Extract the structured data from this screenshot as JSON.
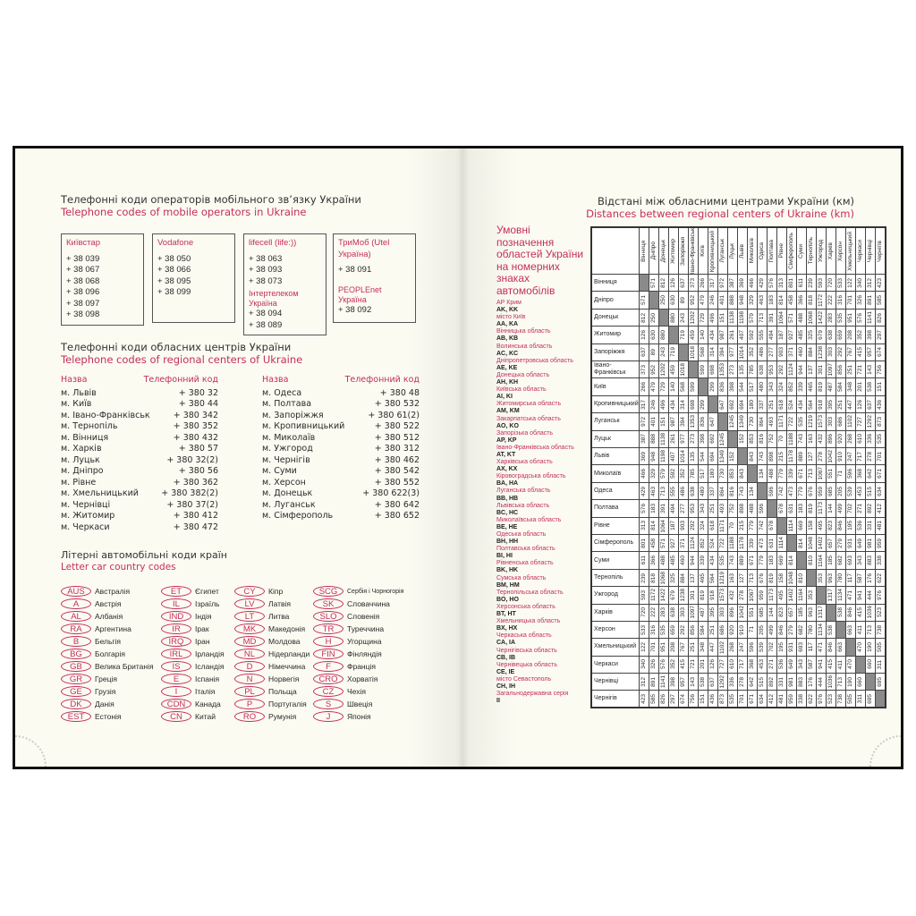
{
  "mobile": {
    "title": "Телефонні коди операторів мобільного зв’язку України",
    "subtitle": "Telephone codes of mobile operators in Ukraine",
    "operators": [
      {
        "name": "Київстар",
        "codes": [
          "+ 38 039",
          "+ 38 067",
          "+ 38 068",
          "+ 38 096",
          "+ 38 097",
          "+ 38 098"
        ]
      },
      {
        "name": "Vodafone",
        "codes": [
          "+ 38 050",
          "+ 38 066",
          "+ 38 095",
          "+ 38 099"
        ]
      },
      {
        "name": "lifecell (life:))",
        "codes": [
          "+ 38 063",
          "+ 38 093",
          "+ 38 073"
        ],
        "sub": "Інтертелеком Україна",
        "subcodes": [
          "+ 38 094",
          "+ 38 089"
        ]
      },
      {
        "name": "ТриМоб (Utel Україна)",
        "codes": [
          "+ 38 091"
        ],
        "sub": "PEOPLEnet Україна",
        "subcodes": [
          "+ 38 092"
        ]
      }
    ]
  },
  "regional": {
    "title": "Телефонні коди обласних центрів України",
    "subtitle": "Telephone codes of regional centers of Ukraine",
    "col_name": "Назва",
    "col_code": "Телефонний код",
    "left": [
      [
        "м. Львів",
        "+ 380 32"
      ],
      [
        "м. Київ",
        "+ 380 44"
      ],
      [
        "м. Івано-Франківськ",
        "+ 380 342"
      ],
      [
        "м. Тернопіль",
        "+ 380 352"
      ],
      [
        "м. Вінниця",
        "+ 380 432"
      ],
      [
        "м. Харків",
        "+ 380 57"
      ],
      [
        "м. Луцьк",
        "+ 380 32(2)"
      ],
      [
        "м. Дніпро",
        "+ 380 56"
      ],
      [
        "м. Рівне",
        "+ 380 362"
      ],
      [
        "м. Хмельницький",
        "+ 380 382(2)"
      ],
      [
        "м. Чернівці",
        "+ 380 37(2)"
      ],
      [
        "м. Житомир",
        "+ 380 412"
      ],
      [
        "м. Черкаси",
        "+ 380 472"
      ]
    ],
    "right": [
      [
        "м. Одеса",
        "+ 380 48"
      ],
      [
        "м. Полтава",
        "+ 380 532"
      ],
      [
        "м. Запоріжжя",
        "+ 380 61(2)"
      ],
      [
        "м. Кропивницький",
        "+ 380 522"
      ],
      [
        "м. Миколаїв",
        "+ 380 512"
      ],
      [
        "м. Ужгород",
        "+ 380 312"
      ],
      [
        "м. Чернігів",
        "+ 380 462"
      ],
      [
        "м. Суми",
        "+ 380 542"
      ],
      [
        "м. Херсон",
        "+ 380 552"
      ],
      [
        "м. Донецьк",
        "+ 380 622(3)"
      ],
      [
        "м. Луганськ",
        "+ 380 642"
      ],
      [
        "м. Сімферополь",
        "+ 380 652"
      ]
    ]
  },
  "countries": {
    "title": "Літерні автомобільні коди країн",
    "subtitle": "Letter car country codes",
    "columns": [
      [
        [
          "AUS",
          "Австралія"
        ],
        [
          "A",
          "Австрія"
        ],
        [
          "AL",
          "Албанія"
        ],
        [
          "RA",
          "Аргентина"
        ],
        [
          "B",
          "Бельгія"
        ],
        [
          "BG",
          "Болгарія"
        ],
        [
          "GB",
          "Велика Британія"
        ],
        [
          "GR",
          "Греція"
        ],
        [
          "GE",
          "Грузія"
        ],
        [
          "DK",
          "Данія"
        ],
        [
          "EST",
          "Естонія"
        ]
      ],
      [
        [
          "ET",
          "Єгипет"
        ],
        [
          "IL",
          "Ізраїль"
        ],
        [
          "IND",
          "Індія"
        ],
        [
          "IR",
          "Ірак"
        ],
        [
          "IRQ",
          "Іран"
        ],
        [
          "IRL",
          "Ірландія"
        ],
        [
          "IS",
          "Ісландія"
        ],
        [
          "E",
          "Іспанія"
        ],
        [
          "I",
          "Італія"
        ],
        [
          "CDN",
          "Канада"
        ],
        [
          "CN",
          "Китай"
        ]
      ],
      [
        [
          "CY",
          "Кіпр"
        ],
        [
          "LV",
          "Латвія"
        ],
        [
          "LT",
          "Литва"
        ],
        [
          "MK",
          "Македонія"
        ],
        [
          "MD",
          "Молдова"
        ],
        [
          "NL",
          "Нідерланди"
        ],
        [
          "D",
          "Німеччина"
        ],
        [
          "N",
          "Норвегія"
        ],
        [
          "PL",
          "Польща"
        ],
        [
          "P",
          "Португалія"
        ],
        [
          "RO",
          "Румунія"
        ]
      ],
      [
        [
          "SCG",
          "Сербія і Чорногорія"
        ],
        [
          "SK",
          "Словаччина"
        ],
        [
          "SLO",
          "Словенія"
        ],
        [
          "TR",
          "Туреччина"
        ],
        [
          "H",
          "Угорщина"
        ],
        [
          "FIN",
          "Фінляндія"
        ],
        [
          "F",
          "Франція"
        ],
        [
          "CRO",
          "Хорватія"
        ],
        [
          "CZ",
          "Чехія"
        ],
        [
          "S",
          "Швеція"
        ],
        [
          "J",
          "Японія"
        ]
      ]
    ]
  },
  "plates": {
    "title": "Умовні позначення областей України на номерних знаках автомобілів",
    "items": [
      [
        "АР Крим",
        "AK, KK"
      ],
      [
        "місто Київ",
        "AA, KA"
      ],
      [
        "Вінницька область",
        "AB, KB"
      ],
      [
        "Волинська область",
        "AC, KC"
      ],
      [
        "Дніпропетровська область",
        "AE, KE"
      ],
      [
        "Донецька область",
        "AH, KH"
      ],
      [
        "Київська область",
        "AI, KI"
      ],
      [
        "Житомирська область",
        "AM, KM"
      ],
      [
        "Закарпатська область",
        "AO, KO"
      ],
      [
        "Запорізька область",
        "AP, KP"
      ],
      [
        "Івано-Франківська область",
        "AT, KT"
      ],
      [
        "Харківська область",
        "AX, KX"
      ],
      [
        "Кіровоградська область",
        "BA, HA"
      ],
      [
        "Луганська область",
        "BB, HB"
      ],
      [
        "Львівська область",
        "BC, HC"
      ],
      [
        "Миколаївська область",
        "BE, HE"
      ],
      [
        "Одеська область",
        "BH, HH"
      ],
      [
        "Полтавська область",
        "BI, HI"
      ],
      [
        "Рівненська область",
        "BK, HK"
      ],
      [
        "Сумська область",
        "BM, HM"
      ],
      [
        "Тернопільська область",
        "BO, HO"
      ],
      [
        "Херсонська область",
        "BT, HT"
      ],
      [
        "Хмельницька область",
        "BX, HX"
      ],
      [
        "Черкаська область",
        "CA, IA"
      ],
      [
        "Чернігівська область",
        "CB, IB"
      ],
      [
        "Чернівецька область",
        "CE, IE"
      ],
      [
        "місто Севастополь",
        "CH, IH"
      ],
      [
        "Загальнодержавна серія",
        "II"
      ]
    ]
  },
  "distances": {
    "title": "Відстані між обласними центрами України (км)",
    "subtitle": "Distances between regional centers of Ukraine (km)",
    "cities": [
      "Вінниця",
      "Дніпро",
      "Донецьк",
      "Житомир",
      "Запоріжжя",
      "Івано-Франківськ",
      "Київ",
      "Кропивницький",
      "Луганськ",
      "Луцьк",
      "Львів",
      "Миколаїв",
      "Одеса",
      "Полтава",
      "Рівне",
      "Сімферополь",
      "Суми",
      "Тернопіль",
      "Ужгород",
      "Харків",
      "Херсон",
      "Хмельницький",
      "Черкаси",
      "Чернівці",
      "Чернігів"
    ],
    "header_labels": [
      "Вінниця",
      "Дніпро",
      "Донецьк",
      "Житомир",
      "Запоріжжя",
      "Івано-Франківськ",
      "Київ",
      "Кропивницький",
      "Луганськ",
      "Луцьк",
      "Львів",
      "Миколаїв",
      "Одеса",
      "Полтава",
      "Рівне",
      "Сімферополь",
      "Суми",
      "Тернопіль",
      "Ужгород",
      "Харків",
      "Херсон",
      "Хмельницький",
      "Черкаси",
      "Чернівці",
      "Чернігів"
    ],
    "row_labels": [
      "Вінниця",
      "Дніпро",
      "Донецьк",
      "Житомир",
      "Запоріжжя",
      "Івано-Франківськ",
      "Київ",
      "Кропивницький",
      "Луганськ",
      "Луцьк",
      "Львів",
      "Миколаїв",
      "Одеса",
      "Полтава",
      "Рівне",
      "Сімферополь",
      "Суми",
      "Тернопіль",
      "Ужгород",
      "Харків",
      "Херсон",
      "Хмельницький",
      "Черкаси",
      "Чернівці",
      "Чернігів"
    ],
    "matrix": [
      [
        null,
        571,
        812,
        126,
        637,
        373,
        266,
        317,
        972,
        387,
        369,
        466,
        429,
        576,
        313,
        801,
        611,
        239,
        593,
        720,
        533,
        122,
        340,
        312,
        423
      ],
      [
        571,
        null,
        250,
        630,
        89,
        952,
        479,
        246,
        401,
        888,
        948,
        329,
        463,
        183,
        814,
        458,
        366,
        818,
        1172,
        222,
        316,
        701,
        326,
        891,
        585
      ],
      [
        812,
        250,
        null,
        880,
        243,
        1202,
        729,
        496,
        151,
        1138,
        1198,
        579,
        713,
        391,
        1064,
        571,
        488,
        1068,
        1422,
        283,
        535,
        951,
        576,
        1141,
        826
      ],
      [
        126,
        630,
        880,
        null,
        719,
        459,
        140,
        434,
        987,
        261,
        407,
        592,
        555,
        494,
        187,
        927,
        485,
        325,
        679,
        638,
        659,
        208,
        352,
        398,
        297
      ],
      [
        637,
        89,
        243,
        719,
        null,
        1018,
        568,
        314,
        394,
        977,
        1014,
        352,
        486,
        277,
        903,
        371,
        460,
        884,
        1238,
        303,
        292,
        767,
        415,
        957,
        674
      ],
      [
        373,
        952,
        1202,
        459,
        1018,
        null,
        599,
        698,
        1353,
        273,
        135,
        785,
        638,
        953,
        292,
        1124,
        944,
        137,
        301,
        1097,
        856,
        251,
        721,
        143,
        756
      ],
      [
        266,
        479,
        729,
        140,
        568,
        599,
        null,
        299,
        836,
        398,
        544,
        517,
        480,
        343,
        324,
        852,
        339,
        465,
        819,
        487,
        584,
        348,
        201,
        538,
        151
      ],
      [
        317,
        246,
        496,
        434,
        314,
        698,
        299,
        null,
        647,
        692,
        694,
        180,
        337,
        251,
        618,
        524,
        434,
        564,
        918,
        395,
        251,
        447,
        126,
        637,
        436
      ],
      [
        972,
        401,
        151,
        987,
        394,
        1353,
        836,
        647,
        null,
        1245,
        1349,
        730,
        864,
        493,
        1171,
        722,
        535,
        1219,
        1573,
        303,
        686,
        1102,
        727,
        1292,
        873
      ],
      [
        387,
        888,
        1138,
        261,
        977,
        273,
        398,
        692,
        1245,
        null,
        152,
        853,
        816,
        752,
        70,
        1188,
        743,
        163,
        432,
        896,
        920,
        268,
        610,
        336,
        535
      ],
      [
        369,
        948,
        1198,
        407,
        1014,
        135,
        544,
        694,
        1349,
        152,
        null,
        843,
        743,
        898,
        215,
        1178,
        889,
        127,
        278,
        1042,
        910,
        247,
        717,
        278,
        701
      ],
      [
        466,
        329,
        579,
        592,
        352,
        785,
        517,
        180,
        730,
        853,
        843,
        null,
        134,
        488,
        779,
        339,
        671,
        713,
        1067,
        551,
        71,
        596,
        368,
        642,
        671
      ],
      [
        429,
        463,
        713,
        555,
        486,
        638,
        480,
        337,
        864,
        816,
        743,
        134,
        null,
        596,
        742,
        473,
        779,
        676,
        959,
        685,
        205,
        539,
        453,
        515,
        634
      ],
      [
        576,
        183,
        391,
        494,
        277,
        953,
        343,
        251,
        493,
        752,
        898,
        488,
        596,
        null,
        678,
        631,
        183,
        819,
        1173,
        144,
        499,
        702,
        271,
        892,
        412
      ],
      [
        313,
        814,
        1064,
        187,
        903,
        292,
        324,
        618,
        1171,
        70,
        215,
        779,
        742,
        678,
        null,
        1114,
        669,
        158,
        495,
        823,
        846,
        195,
        536,
        331,
        481
      ],
      [
        801,
        458,
        571,
        927,
        371,
        1124,
        852,
        524,
        722,
        1188,
        1178,
        339,
        473,
        631,
        1114,
        null,
        814,
        1048,
        1402,
        657,
        279,
        931,
        649,
        981,
        959
      ],
      [
        611,
        366,
        488,
        485,
        460,
        944,
        339,
        434,
        535,
        743,
        889,
        671,
        779,
        183,
        669,
        814,
        null,
        810,
        1164,
        185,
        682,
        693,
        343,
        883,
        338
      ],
      [
        239,
        818,
        1068,
        325,
        884,
        137,
        465,
        564,
        1219,
        163,
        127,
        713,
        676,
        819,
        158,
        1048,
        810,
        null,
        353,
        963,
        780,
        117,
        587,
        176,
        622
      ],
      [
        593,
        1172,
        1422,
        679,
        1238,
        301,
        819,
        918,
        1573,
        432,
        278,
        1067,
        959,
        1173,
        495,
        1402,
        1164,
        353,
        null,
        1317,
        1134,
        471,
        941,
        444,
        976
      ],
      [
        720,
        222,
        283,
        638,
        303,
        1097,
        487,
        395,
        303,
        896,
        1042,
        551,
        685,
        144,
        823,
        657,
        185,
        963,
        1317,
        null,
        538,
        846,
        415,
        1036,
        523
      ],
      [
        533,
        316,
        535,
        659,
        292,
        856,
        584,
        251,
        686,
        920,
        910,
        71,
        205,
        499,
        846,
        279,
        682,
        780,
        1134,
        538,
        null,
        663,
        411,
        713,
        738
      ],
      [
        122,
        701,
        951,
        208,
        767,
        251,
        348,
        447,
        1102,
        268,
        247,
        596,
        539,
        702,
        195,
        931,
        693,
        117,
        471,
        846,
        663,
        null,
        470,
        190,
        505
      ],
      [
        340,
        326,
        576,
        352,
        415,
        721,
        201,
        126,
        727,
        610,
        717,
        368,
        453,
        271,
        536,
        649,
        343,
        587,
        941,
        415,
        411,
        470,
        null,
        660,
        311
      ],
      [
        312,
        891,
        1141,
        398,
        957,
        143,
        538,
        637,
        1292,
        336,
        278,
        642,
        515,
        892,
        331,
        981,
        883,
        176,
        444,
        1036,
        713,
        190,
        660,
        null,
        695
      ],
      [
        423,
        585,
        826,
        297,
        674,
        756,
        151,
        436,
        873,
        535,
        701,
        671,
        634,
        412,
        481,
        959,
        338,
        622,
        976,
        523,
        738,
        505,
        311,
        695,
        null
      ]
    ]
  },
  "colors": {
    "accent": "#c42f5b",
    "paper": "#fbfbf2",
    "diagonal": "#8a8a8a"
  }
}
